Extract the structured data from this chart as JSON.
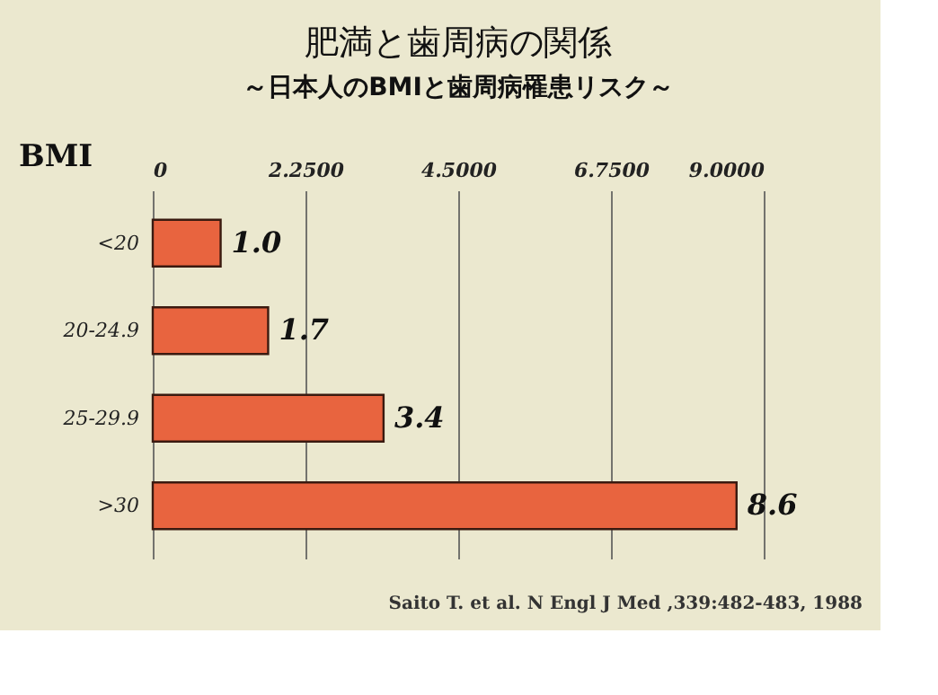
{
  "chart_data": {
    "type": "bar",
    "orientation": "horizontal",
    "title": "肥満と歯周病の関係",
    "subtitle": "～日本人のBMIと歯周病罹患リスク～",
    "ylabel": "BMI",
    "categories": [
      "<20",
      "20-24.9",
      "25-29.9",
      ">30"
    ],
    "values": [
      1.0,
      1.7,
      3.4,
      8.6
    ],
    "value_labels": [
      "1.0",
      "1.7",
      "3.4",
      "8.6"
    ],
    "color": "#e8643f",
    "xlim": [
      0,
      9
    ],
    "xticks": [
      0,
      {
        "value": 2.25,
        "label": "2.2500"
      },
      {
        "value": 4.5,
        "label": "4.5000"
      },
      {
        "value": 6.75,
        "label": "6.7500"
      },
      {
        "value": 9,
        "label": "9.0000"
      }
    ],
    "grid": "x",
    "annotations": [
      "Saito T. et al. N Engl J Med ,339:482-483, 1988"
    ]
  }
}
